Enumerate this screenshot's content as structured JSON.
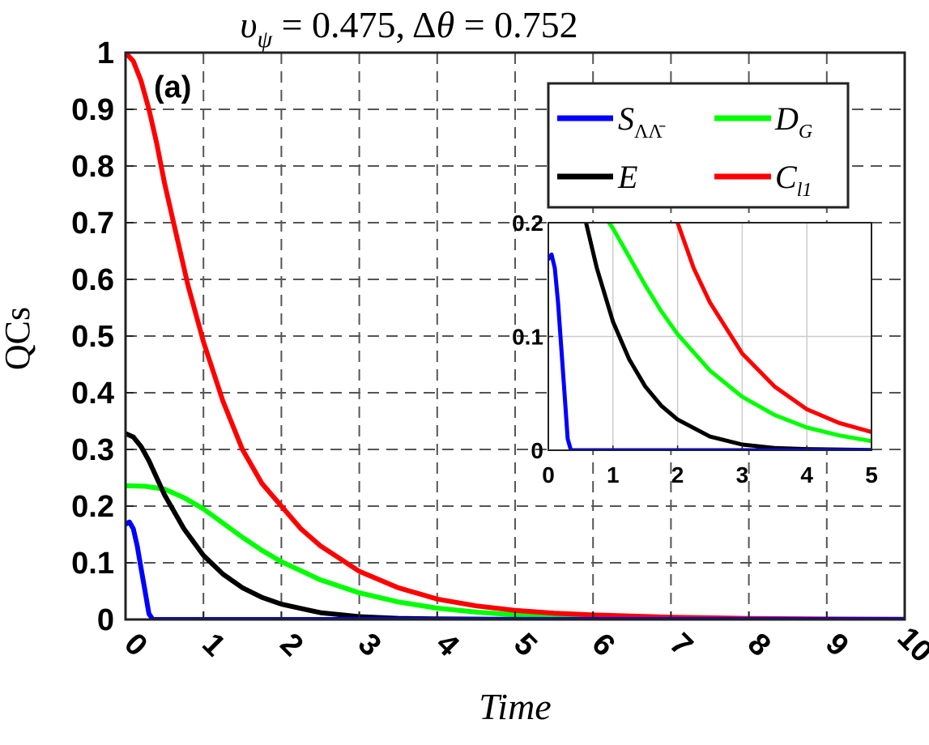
{
  "chart_data": {
    "type": "line",
    "title": "υ_ψ = 0.475, Δθ = 0.752",
    "title_parts": {
      "var1": "υ",
      "sub1": "ψ",
      "val1": " = 0.475, Δ",
      "var2": "θ",
      "val2": " = 0.752"
    },
    "panel_label": "(a)",
    "xlabel": "Time",
    "ylabel": "QCs",
    "xlim": [
      0,
      10
    ],
    "ylim": [
      0,
      1
    ],
    "xticks": [
      0,
      1,
      2,
      3,
      4,
      5,
      6,
      7,
      8,
      9,
      10
    ],
    "yticks": [
      0,
      0.1,
      0.2,
      0.3,
      0.4,
      0.5,
      0.6,
      0.7,
      0.8,
      0.9,
      1
    ],
    "grid": true,
    "legend_position": "top-right",
    "series": [
      {
        "name": "S_ΛΛ̄",
        "legend_main": "S",
        "legend_sub": "ΛΛ̄",
        "color": "#0000ff",
        "x": [
          0,
          0.05,
          0.1,
          0.15,
          0.2,
          0.25,
          0.3,
          0.35,
          0.4,
          1,
          2,
          3,
          4,
          5,
          6,
          7,
          8,
          9,
          10
        ],
        "y": [
          0.168,
          0.172,
          0.16,
          0.13,
          0.09,
          0.05,
          0.01,
          0,
          0,
          0,
          0,
          0,
          0,
          0,
          0,
          0,
          0,
          0,
          0
        ]
      },
      {
        "name": "D_G",
        "legend_main": "D",
        "legend_sub": "G",
        "color": "#00ff00",
        "x": [
          0,
          0.25,
          0.5,
          0.75,
          1,
          1.25,
          1.5,
          1.75,
          2,
          2.5,
          3,
          3.5,
          4,
          4.5,
          5,
          6,
          7,
          8,
          9,
          10
        ],
        "y": [
          0.236,
          0.235,
          0.23,
          0.215,
          0.195,
          0.17,
          0.145,
          0.122,
          0.102,
          0.07,
          0.047,
          0.031,
          0.02,
          0.013,
          0.008,
          0.004,
          0.0015,
          0.0006,
          0.0002,
          0.0001
        ]
      },
      {
        "name": "E",
        "legend_main": "E",
        "legend_sub": "",
        "color": "#000000",
        "x": [
          0,
          0.1,
          0.2,
          0.3,
          0.4,
          0.5,
          0.75,
          1,
          1.25,
          1.5,
          1.75,
          2,
          2.5,
          3,
          3.5,
          4,
          5,
          6,
          7,
          8,
          9,
          10
        ],
        "y": [
          0.328,
          0.322,
          0.305,
          0.28,
          0.25,
          0.22,
          0.16,
          0.113,
          0.08,
          0.056,
          0.039,
          0.027,
          0.012,
          0.005,
          0.002,
          0.001,
          0.0002,
          0,
          0,
          0,
          0,
          0
        ]
      },
      {
        "name": "C_l1",
        "legend_main": "C",
        "legend_sub": "l1",
        "color": "#ff0000",
        "x": [
          0,
          0.1,
          0.2,
          0.3,
          0.4,
          0.5,
          0.6,
          0.8,
          1,
          1.25,
          1.5,
          1.75,
          2,
          2.25,
          2.5,
          3,
          3.5,
          4,
          4.5,
          5,
          5.5,
          6,
          7,
          8,
          9,
          10
        ],
        "y": [
          1,
          0.985,
          0.95,
          0.9,
          0.84,
          0.77,
          0.71,
          0.59,
          0.49,
          0.385,
          0.3,
          0.24,
          0.2,
          0.16,
          0.13,
          0.085,
          0.056,
          0.036,
          0.024,
          0.016,
          0.011,
          0.008,
          0.004,
          0.0018,
          0.0008,
          0.0004
        ]
      }
    ],
    "inset": {
      "xlim": [
        0,
        5
      ],
      "ylim": [
        0,
        0.2
      ],
      "xticks": [
        0,
        1,
        2,
        3,
        4,
        5
      ],
      "ytick_values": [
        0,
        0.1,
        0.2
      ],
      "ytick_labels": [
        "0",
        "0.1",
        "0.2"
      ],
      "grid": true
    }
  }
}
